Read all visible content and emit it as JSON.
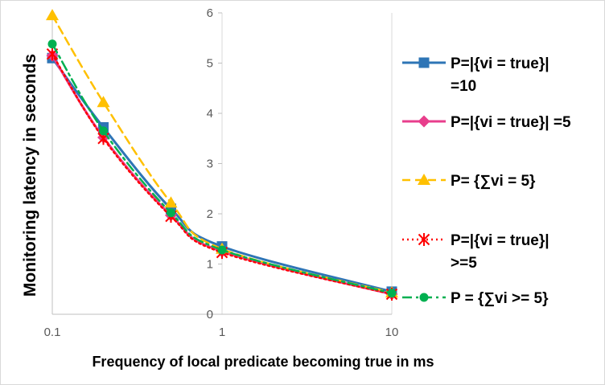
{
  "chart_data": {
    "type": "line",
    "x_scale": "log",
    "x_ticks": [
      "0.1",
      "1",
      "10"
    ],
    "y_ticks": [
      "0",
      "1",
      "2",
      "3",
      "4",
      "5",
      "6"
    ],
    "xlabel": "Frequency of local predicate becoming true in ms",
    "ylabel": "Monitoring latency in seconds",
    "xlim": [
      0.1,
      10
    ],
    "ylim": [
      0,
      6
    ],
    "grid": "vertical",
    "legend_position": "right",
    "x": [
      0.1,
      0.2,
      0.5,
      1,
      10
    ],
    "series": [
      {
        "name": "P=|{vi = true}| =10",
        "label_lines": [
          "P=|{vi = true}|",
          "=10"
        ],
        "color": "#2e75b6",
        "dash": "solid",
        "marker": "square",
        "values": [
          5.1,
          3.72,
          2.1,
          1.35,
          0.45
        ]
      },
      {
        "name": "P=|{vi = true}| =5",
        "label_lines": [
          "P=|{vi = true}| =5"
        ],
        "color": "#e83e8c",
        "dash": "solid",
        "marker": "diamond",
        "values": [
          5.15,
          3.52,
          1.97,
          1.25,
          0.4
        ]
      },
      {
        "name": "P= {∑vi = 5}",
        "label_lines": [
          "P= {∑vi = 5}"
        ],
        "color": "#ffc000",
        "dash": "dashed",
        "marker": "triangle",
        "values": [
          5.95,
          4.22,
          2.22,
          1.3,
          0.43
        ]
      },
      {
        "name": "P=|{vi = true}| >=5",
        "label_lines": [
          "P=|{vi = true}|",
          ">=5"
        ],
        "color": "#ff0000",
        "dash": "dotted",
        "marker": "star",
        "values": [
          5.18,
          3.5,
          1.95,
          1.23,
          0.4
        ]
      },
      {
        "name": "P = {∑vi >= 5}",
        "label_lines": [
          "P = {∑vi >= 5}"
        ],
        "color": "#00b050",
        "dash": "dashdot",
        "marker": "circle",
        "values": [
          5.38,
          3.65,
          2.02,
          1.28,
          0.42
        ]
      }
    ]
  }
}
